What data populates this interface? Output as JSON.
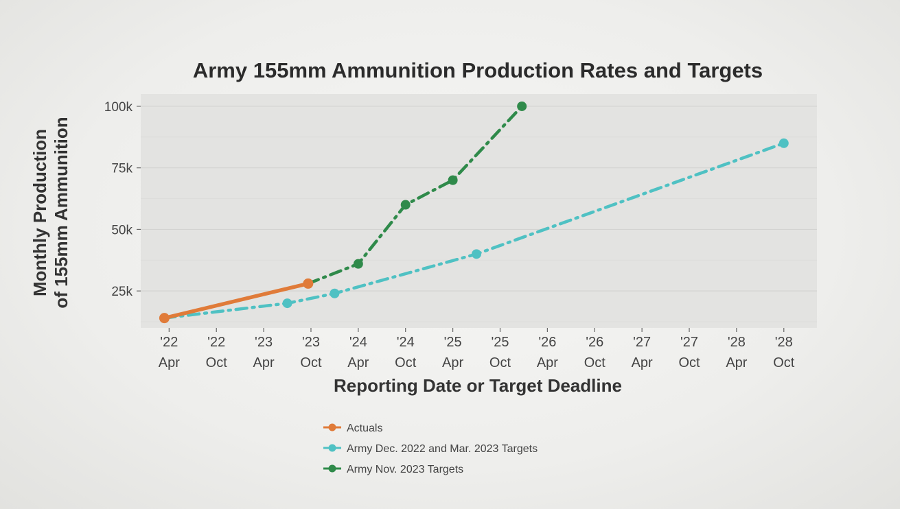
{
  "chart_data": {
    "type": "line",
    "title": "Army 155mm Ammunition Production Rates and Targets",
    "xlabel": "Reporting Date or Target Deadline",
    "ylabel_line1": "Monthly Production",
    "ylabel_line2": "of 155mm Ammunition",
    "ylim": [
      10000,
      105000
    ],
    "xlim": [
      2021.95,
      2029.1
    ],
    "grid": true,
    "y_ticks": [
      {
        "value": 25000,
        "label": "25k"
      },
      {
        "value": 50000,
        "label": "50k"
      },
      {
        "value": 75000,
        "label": "75k"
      },
      {
        "value": 100000,
        "label": "100k"
      }
    ],
    "x_ticks": [
      {
        "value": 2022.25,
        "year": "'22",
        "month": "Apr"
      },
      {
        "value": 2022.75,
        "year": "'22",
        "month": "Oct"
      },
      {
        "value": 2023.25,
        "year": "'23",
        "month": "Apr"
      },
      {
        "value": 2023.75,
        "year": "'23",
        "month": "Oct"
      },
      {
        "value": 2024.25,
        "year": "'24",
        "month": "Apr"
      },
      {
        "value": 2024.75,
        "year": "'24",
        "month": "Oct"
      },
      {
        "value": 2025.25,
        "year": "'25",
        "month": "Apr"
      },
      {
        "value": 2025.75,
        "year": "'25",
        "month": "Oct"
      },
      {
        "value": 2026.25,
        "year": "'26",
        "month": "Apr"
      },
      {
        "value": 2026.75,
        "year": "'26",
        "month": "Oct"
      },
      {
        "value": 2027.25,
        "year": "'27",
        "month": "Apr"
      },
      {
        "value": 2027.75,
        "year": "'27",
        "month": "Oct"
      },
      {
        "value": 2028.25,
        "year": "'28",
        "month": "Apr"
      },
      {
        "value": 2028.75,
        "year": "'28",
        "month": "Oct"
      }
    ],
    "series": [
      {
        "name": "Actuals",
        "color": "#e07b39",
        "style": "solid",
        "x": [
          2022.2,
          2023.72
        ],
        "y": [
          14000,
          28000
        ]
      },
      {
        "name": "Army Dec. 2022 and Mar. 2023 Targets",
        "color": "#4fc1c3",
        "style": "dashdot",
        "x": [
          2022.2,
          2023.5,
          2024.0,
          2025.5,
          2028.75
        ],
        "y": [
          14000,
          20000,
          24000,
          40000,
          85000
        ]
      },
      {
        "name": "Army Nov. 2023 Targets",
        "color": "#2f8a4a",
        "style": "dashdot",
        "x": [
          2023.72,
          2024.25,
          2024.75,
          2025.25,
          2025.98
        ],
        "y": [
          28000,
          36000,
          60000,
          70000,
          100000
        ]
      }
    ]
  }
}
